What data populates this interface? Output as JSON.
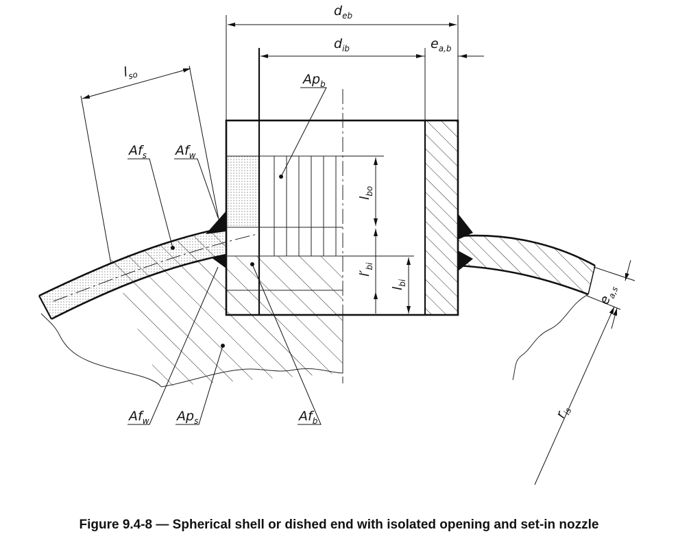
{
  "labels": {
    "d_eb": {
      "main": "d",
      "sub": "eb"
    },
    "d_ib": {
      "main": "d",
      "sub": "ib"
    },
    "e_ab": {
      "main": "e",
      "sub": "a,b"
    },
    "l_so": {
      "main": "l",
      "sub": "so"
    },
    "Ap_b": {
      "main": "Ap",
      "sub": "b"
    },
    "Af_s": {
      "main": "Af",
      "sub": "s"
    },
    "Af_w_top": {
      "main": "Af",
      "sub": "w"
    },
    "l_bo": {
      "main": "l",
      "sub": "bo"
    },
    "l_prime_bi": {
      "main": "l′",
      "sub": "bi"
    },
    "l_bi": {
      "main": "l",
      "sub": "bi"
    },
    "e_as": {
      "main": "e",
      "sub": "a,s"
    },
    "r_is": {
      "main": "r",
      "sub": "is"
    },
    "Af_w_bottom": {
      "main": "Af",
      "sub": "w"
    },
    "Ap_s": {
      "main": "Ap",
      "sub": "s"
    },
    "Af_b": {
      "main": "Af",
      "sub": "b"
    }
  },
  "caption": "Figure 9.4-8 — Spherical shell or dished end with isolated opening and set-in nozzle"
}
